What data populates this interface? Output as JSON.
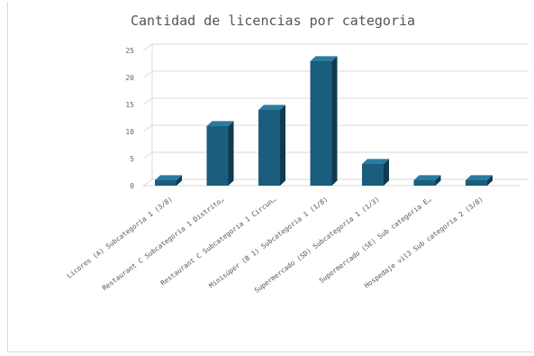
{
  "chart_data": {
    "type": "bar",
    "title": "Cantidad de licencias por categoria",
    "categories": [
      "Licores (A) Subcategoria 1 (3/8)",
      "Restaurant C Subcategoria 1 Distrito…",
      "Restaurant C Subcategoria 1 Circun…",
      "Minisúper (B 1) Subcategoria 1 (1/8)",
      "Supermercado (SD) Subcategoria 1 (1/3)",
      "Supermercado (SE) Sub categoria E…",
      "Hospedaje vil3 Sub categoria 2 (3/8)"
    ],
    "values": [
      1,
      11,
      14,
      23,
      4,
      1,
      1
    ],
    "ylim": [
      0,
      25
    ],
    "yticks": [
      0,
      5,
      10,
      15,
      20,
      25
    ],
    "grid": true,
    "three_d": true,
    "legend": "none",
    "colors": {
      "bar_front": "#1b5d7d",
      "bar_side": "#0f3a50",
      "bar_top": "#2b7aa0",
      "grid": "#d9d9d9"
    }
  }
}
